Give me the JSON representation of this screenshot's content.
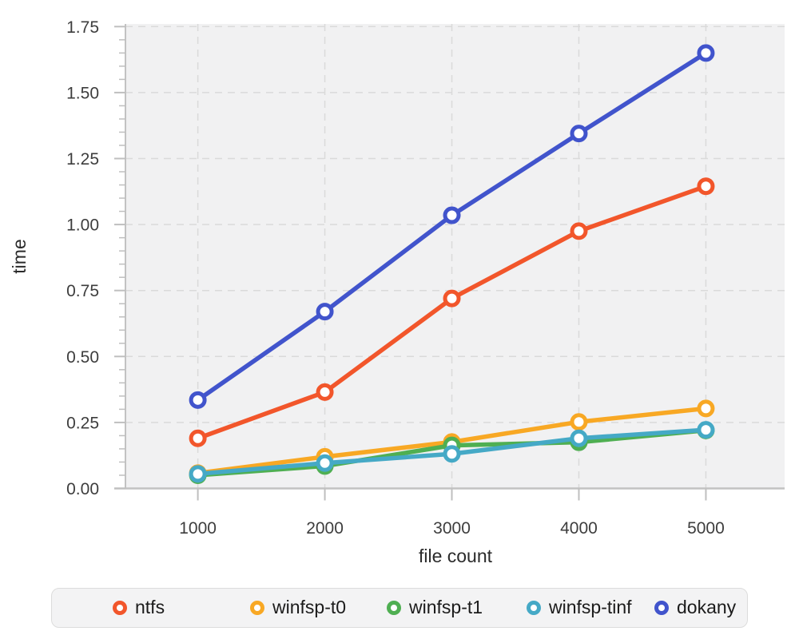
{
  "chart_data": {
    "type": "line",
    "title": "",
    "xlabel": "file count",
    "ylabel": "time",
    "x": [
      1000,
      2000,
      3000,
      4000,
      5000
    ],
    "series": [
      {
        "name": "ntfs",
        "color": "#F2562B",
        "values": [
          0.19,
          0.365,
          0.72,
          0.975,
          1.145
        ]
      },
      {
        "name": "winfsp-t0",
        "color": "#F8A824",
        "values": [
          0.058,
          0.12,
          0.176,
          0.252,
          0.303
        ]
      },
      {
        "name": "winfsp-t1",
        "color": "#4FAF52",
        "values": [
          0.05,
          0.085,
          0.163,
          0.175,
          0.22
        ]
      },
      {
        "name": "winfsp-tinf",
        "color": "#45A9C6",
        "values": [
          0.055,
          0.096,
          0.131,
          0.19,
          0.222
        ]
      },
      {
        "name": "dokany",
        "color": "#4154CC",
        "values": [
          0.335,
          0.67,
          1.035,
          1.345,
          1.65
        ]
      }
    ],
    "x_ticks": [
      "1000",
      "2000",
      "3000",
      "4000",
      "5000"
    ],
    "y_ticks": [
      "0.00",
      "0.25",
      "0.50",
      "0.75",
      "1.00",
      "1.25",
      "1.50",
      "1.75"
    ],
    "xlim": [
      430,
      5620
    ],
    "ylim": [
      0,
      1.76
    ],
    "y_minor_step": 0.05,
    "grid": true,
    "legend_position": "bottom",
    "colors": {
      "plot_bg": "#F1F1F2",
      "grid": "#DADADA",
      "axis": "#C2C2C2",
      "tick": "#BFBFBF",
      "tick_label": "#3D3D3D",
      "axis_title": "#2B2B2B"
    }
  }
}
